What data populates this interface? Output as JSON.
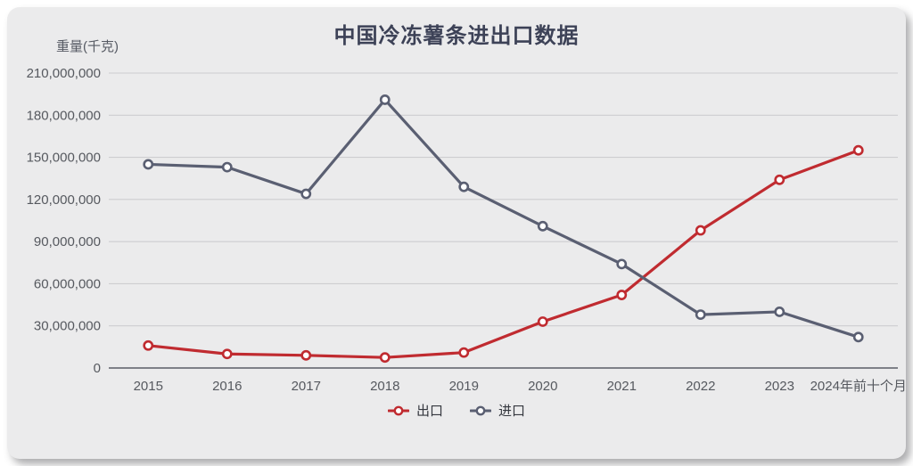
{
  "card": {
    "title": "中国冷冻薯条进出口数据",
    "y_axis_unit": "重量(千克)"
  },
  "chart_data": {
    "type": "line",
    "title": "中国冷冻薯条进出口数据",
    "ylabel": "重量(千克)",
    "xlabel": "",
    "categories": [
      "2015",
      "2016",
      "2017",
      "2018",
      "2019",
      "2020",
      "2021",
      "2022",
      "2023",
      "2024年前十个月"
    ],
    "series": [
      {
        "name": "出口",
        "color": "#c02b30",
        "values": [
          16000000,
          10000000,
          9000000,
          7500000,
          11000000,
          33000000,
          52000000,
          98000000,
          134000000,
          155000000
        ]
      },
      {
        "name": "进口",
        "color": "#5a5f72",
        "values": [
          145000000,
          143000000,
          124000000,
          191000000,
          129000000,
          101000000,
          74000000,
          38000000,
          40000000,
          22000000
        ]
      }
    ],
    "ylim": [
      0,
      210000000
    ],
    "y_tick_step": 30000000,
    "grid": true,
    "legend_position": "bottom",
    "marker": "hollow-circle"
  },
  "colors": {
    "card_background": "#ebebec",
    "title_text": "#3d4257",
    "axis_label": "#56595f",
    "grid_line": "#cdcdd0",
    "axis_line": "#6f707a",
    "marker_fill": "#ffffff",
    "legend_text": "#34373e"
  }
}
